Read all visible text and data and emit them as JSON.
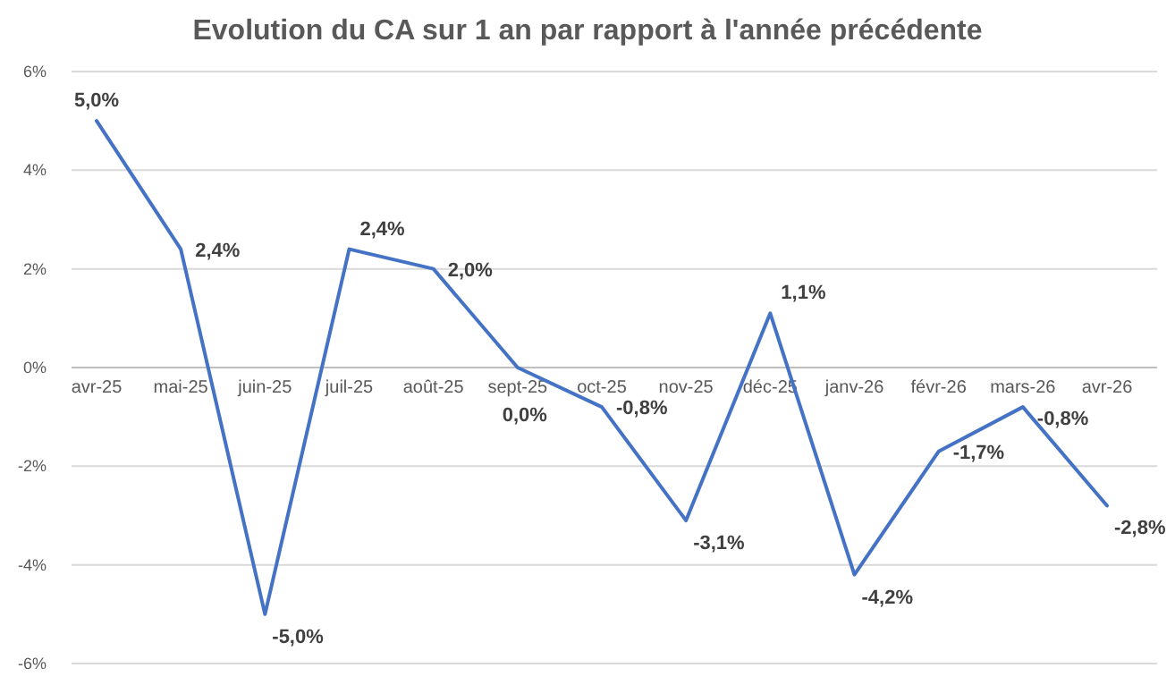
{
  "chart_data": {
    "type": "line",
    "title": "Evolution du CA sur 1 an par rapport à l'année précédente",
    "categories": [
      "avr-25",
      "mai-25",
      "juin-25",
      "juil-25",
      "août-25",
      "sept-25",
      "oct-25",
      "nov-25",
      "déc-25",
      "janv-26",
      "févr-26",
      "mars-26",
      "avr-26"
    ],
    "series": [
      {
        "color": "#4472c4",
        "values": [
          5.0,
          2.4,
          -5.0,
          2.4,
          2.0,
          0.0,
          -0.8,
          -3.1,
          1.1,
          -4.2,
          -1.7,
          -0.8,
          -2.8
        ],
        "value_labels": [
          "5,0%",
          "2,4%",
          "-5,0%",
          "2,4%",
          "2,0%",
          "0,0%",
          "-0,8%",
          "-3,1%",
          "1,1%",
          "-4,2%",
          "-1,7%",
          "-0,8%",
          "-2,8%"
        ]
      }
    ],
    "ylim": [
      -6,
      6
    ],
    "yticks": [
      {
        "value": -6,
        "label": "-6%"
      },
      {
        "value": -4,
        "label": "-4%"
      },
      {
        "value": -2,
        "label": "-2%"
      },
      {
        "value": 0,
        "label": "0%"
      },
      {
        "value": 2,
        "label": "2%"
      },
      {
        "value": 4,
        "label": "4%"
      },
      {
        "value": 6,
        "label": "6%"
      }
    ],
    "grid": "y",
    "marker": "none",
    "line_style": "solid"
  }
}
